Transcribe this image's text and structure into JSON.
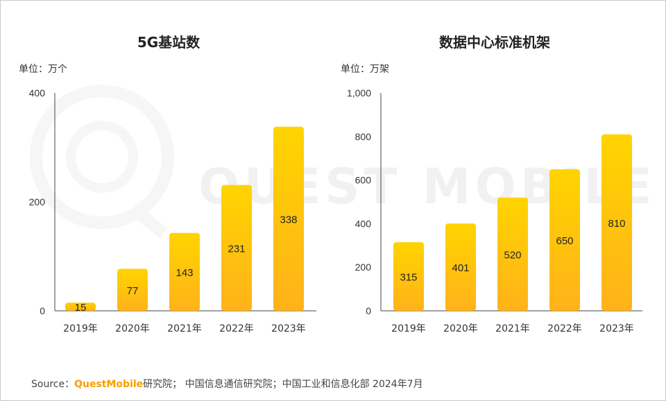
{
  "source": {
    "prefix": "Source：",
    "brand": "QuestMobile",
    "rest": "研究院； 中国信息通信研究院；中国工业和信息化部 2024年7月"
  },
  "watermark": {
    "text": "QUEST MOBILE"
  },
  "colors": {
    "bar_top": "#FFD400",
    "bar_bottom": "#FFB21A",
    "axis": "#444444"
  },
  "chart_data": [
    {
      "type": "bar",
      "title": "5G基站数",
      "unit": "单位：万个",
      "categories": [
        "2019年",
        "2020年",
        "2021年",
        "2022年",
        "2023年"
      ],
      "values": [
        15,
        77,
        143,
        231,
        338
      ],
      "ylim": [
        0,
        400
      ],
      "yticks": [
        "0",
        "200",
        "400"
      ],
      "ytick_values": [
        0,
        200,
        400
      ]
    },
    {
      "type": "bar",
      "title": "数据中心标准机架",
      "unit": "单位：万架",
      "categories": [
        "2019年",
        "2020年",
        "2021年",
        "2022年",
        "2023年"
      ],
      "values": [
        315,
        401,
        520,
        650,
        810
      ],
      "ylim": [
        0,
        1000
      ],
      "yticks": [
        "0",
        "200",
        "400",
        "600",
        "800",
        "1,000"
      ],
      "ytick_values": [
        0,
        200,
        400,
        600,
        800,
        1000
      ]
    }
  ]
}
